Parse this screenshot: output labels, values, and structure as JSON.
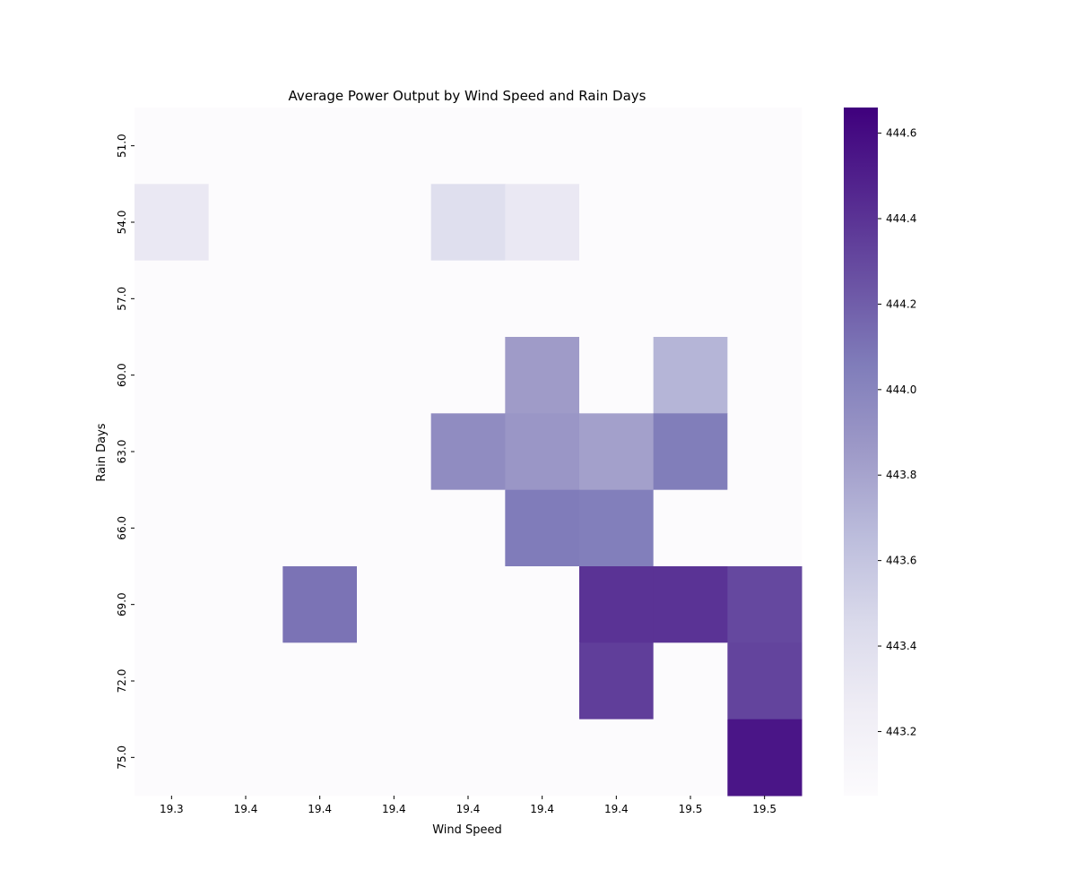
{
  "chart_data": {
    "type": "heatmap",
    "title": "Average Power Output by Wind Speed and Rain Days",
    "xlabel": "Wind Speed",
    "ylabel": "Rain Days",
    "x_tick_labels": [
      "19.3",
      "19.4",
      "19.4",
      "19.4",
      "19.4",
      "19.4",
      "19.4",
      "19.5",
      "19.5"
    ],
    "y_tick_labels": [
      "51.0",
      "54.0",
      "57.0",
      "60.0",
      "63.0",
      "66.0",
      "69.0",
      "72.0",
      "75.0"
    ],
    "values": [
      [
        443.05,
        443.05,
        443.05,
        443.05,
        443.05,
        443.05,
        443.05,
        443.05,
        443.05
      ],
      [
        443.3,
        443.05,
        443.05,
        443.05,
        443.4,
        443.3,
        443.05,
        443.05,
        443.05
      ],
      [
        443.05,
        443.05,
        443.05,
        443.05,
        443.05,
        443.05,
        443.05,
        443.05,
        443.05
      ],
      [
        443.05,
        443.05,
        443.05,
        443.05,
        443.05,
        443.85,
        443.05,
        443.7,
        443.05
      ],
      [
        443.05,
        443.05,
        443.05,
        443.05,
        443.95,
        443.88,
        443.82,
        444.05,
        443.05
      ],
      [
        443.05,
        443.05,
        443.05,
        443.05,
        443.05,
        444.06,
        444.04,
        443.05,
        443.05
      ],
      [
        443.05,
        443.05,
        444.1,
        443.05,
        443.05,
        443.05,
        444.4,
        444.4,
        444.3
      ],
      [
        443.05,
        443.05,
        443.05,
        443.05,
        443.05,
        443.05,
        444.35,
        443.05,
        444.32
      ],
      [
        443.05,
        443.05,
        443.05,
        443.05,
        443.05,
        443.05,
        443.05,
        443.05,
        444.55
      ]
    ],
    "colorbar": {
      "min": 443.05,
      "max": 444.66,
      "tick_values": [
        443.2,
        443.4,
        443.6,
        443.8,
        444.0,
        444.2,
        444.4,
        444.6
      ],
      "tick_labels": [
        "443.2",
        "443.4",
        "443.6",
        "443.8",
        "444.0",
        "444.2",
        "444.4",
        "444.6"
      ]
    },
    "colormap": "Purples",
    "colormap_stops": [
      "#fcfbfd",
      "#efedf5",
      "#dadaeb",
      "#bcbddc",
      "#9e9ac8",
      "#807dba",
      "#6a51a3",
      "#54278f",
      "#3f007d"
    ],
    "grid": false,
    "legend": "none"
  }
}
